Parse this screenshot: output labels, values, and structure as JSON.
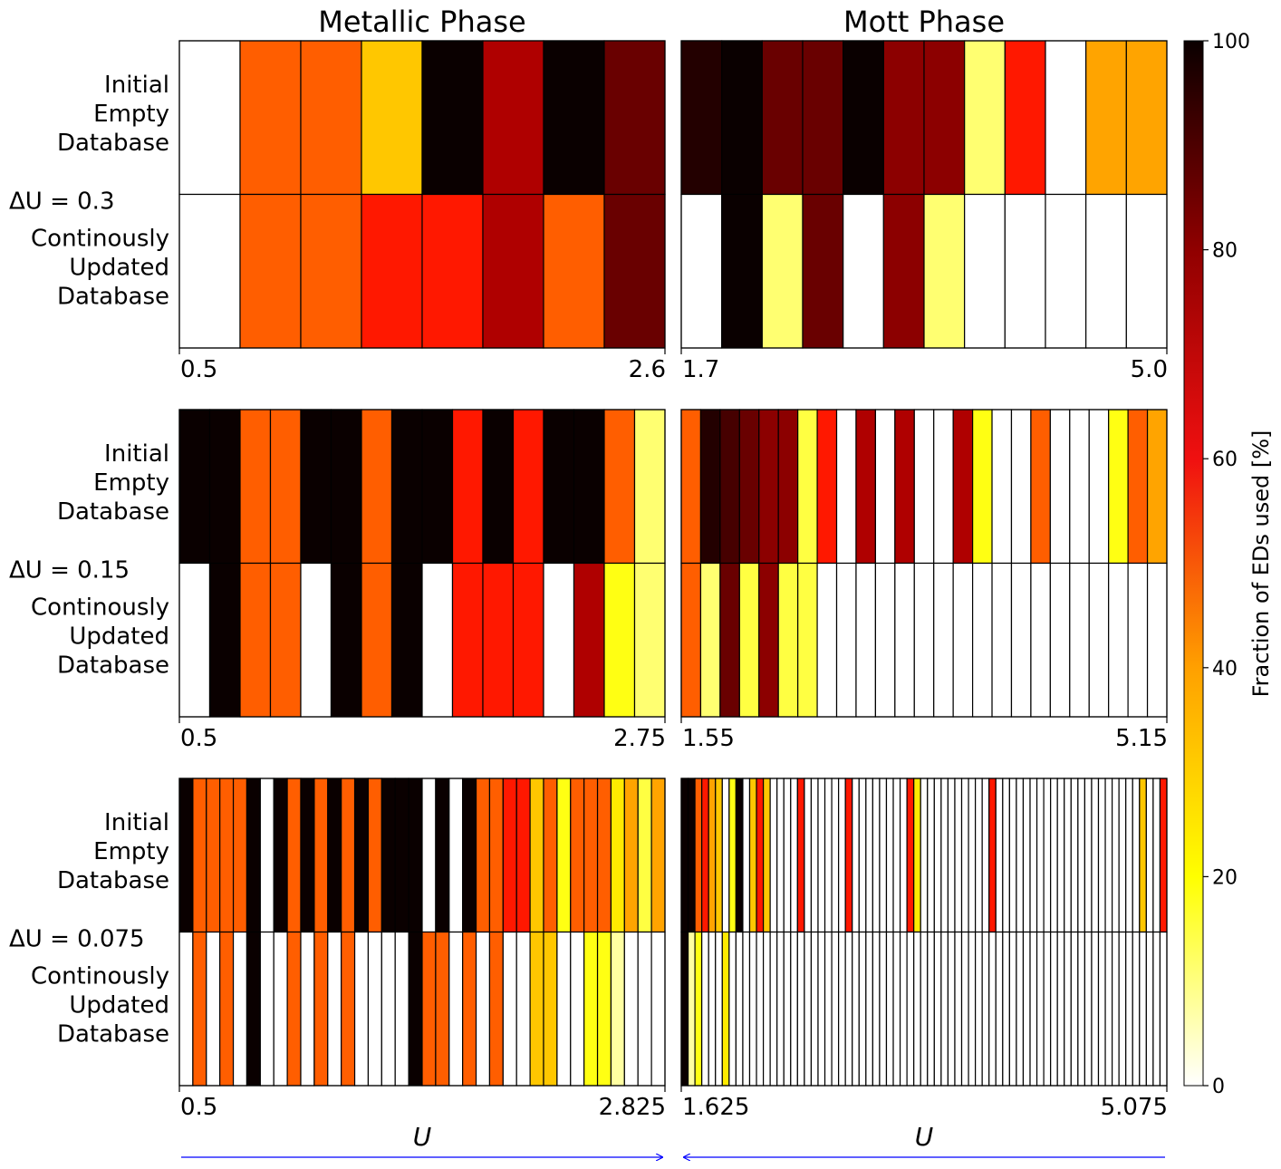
{
  "chart_data": {
    "type": "heatmap",
    "title_left": "Metallic Phase",
    "title_right": "Mott Phase",
    "row_labels": {
      "initial": [
        "Initial",
        "Empty",
        "Database"
      ],
      "continuous": [
        "Continously",
        "Updated",
        "Database"
      ]
    },
    "xlabel": "U",
    "colorbar": {
      "label": "Fraction of EDs used [%]",
      "range": [
        0,
        100
      ],
      "ticks": [
        "0",
        "20",
        "40",
        "60",
        "80",
        "100"
      ],
      "colormap": "hot_r"
    },
    "sweep_directions": {
      "metallic": "increasing U",
      "mott": "decreasing U"
    },
    "arrow_color": "#0000ff",
    "panels": [
      {
        "delta_label": "ΔU = 0.3",
        "metallic": {
          "start": "0.5",
          "end": "2.6",
          "initial": [
            0,
            50,
            50,
            35,
            100,
            75,
            100,
            85
          ],
          "continuous": [
            0,
            50,
            50,
            60,
            60,
            75,
            50,
            85
          ]
        },
        "mott": {
          "start": "1.7",
          "end": "5.0",
          "initial": [
            95,
            100,
            85,
            85,
            100,
            80,
            80,
            15,
            60,
            0,
            40,
            40
          ],
          "continuous": [
            0,
            100,
            15,
            85,
            0,
            80,
            15,
            0,
            0,
            0,
            0,
            0
          ]
        }
      },
      {
        "delta_label": "ΔU = 0.15",
        "metallic": {
          "start": "0.5",
          "end": "2.75",
          "initial": [
            100,
            100,
            50,
            50,
            100,
            100,
            50,
            100,
            100,
            60,
            100,
            60,
            100,
            100,
            50,
            15
          ],
          "continuous": [
            0,
            100,
            50,
            50,
            0,
            100,
            50,
            100,
            0,
            60,
            60,
            60,
            0,
            75,
            25,
            15
          ]
        },
        "mott": {
          "start": "1.55",
          "end": "5.15",
          "initial": [
            50,
            95,
            90,
            85,
            80,
            80,
            20,
            60,
            0,
            75,
            0,
            75,
            0,
            0,
            75,
            25,
            0,
            0,
            50,
            0,
            0,
            0,
            25,
            50,
            40
          ],
          "continuous": [
            50,
            15,
            85,
            20,
            80,
            20,
            20,
            0,
            0,
            0,
            0,
            0,
            0,
            0,
            0,
            0,
            0,
            0,
            0,
            0,
            0,
            0,
            0,
            0,
            0
          ]
        }
      },
      {
        "delta_label": "ΔU = 0.075",
        "metallic": {
          "start": "0.5",
          "end": "2.825",
          "initial": [
            100,
            50,
            50,
            50,
            50,
            100,
            0,
            100,
            50,
            100,
            50,
            100,
            50,
            100,
            50,
            100,
            100,
            100,
            0,
            100,
            0,
            100,
            50,
            50,
            60,
            60,
            35,
            50,
            25,
            50,
            50,
            50,
            30,
            40,
            20,
            40
          ],
          "continuous": [
            0,
            50,
            0,
            50,
            0,
            100,
            0,
            0,
            50,
            0,
            50,
            0,
            50,
            0,
            0,
            0,
            0,
            100,
            50,
            50,
            0,
            50,
            0,
            50,
            0,
            0,
            35,
            35,
            0,
            0,
            25,
            25,
            10,
            0,
            0,
            0
          ]
        },
        "mott": {
          "start": "1.625",
          "end": "5.075",
          "initial": [
            100,
            100,
            50,
            60,
            40,
            35,
            0,
            25,
            100,
            0,
            35,
            60,
            35,
            0,
            0,
            0,
            0,
            60,
            0,
            0,
            0,
            0,
            0,
            0,
            60,
            0,
            0,
            0,
            0,
            0,
            0,
            0,
            0,
            60,
            30,
            0,
            0,
            0,
            0,
            0,
            0,
            0,
            0,
            0,
            0,
            60,
            0,
            0,
            0,
            0,
            0,
            0,
            0,
            0,
            0,
            0,
            0,
            0,
            0,
            0,
            0,
            0,
            0,
            0,
            0,
            0,
            0,
            35,
            0,
            0,
            60
          ],
          "continuous": [
            100,
            10,
            25,
            0,
            0,
            0,
            30,
            0,
            0,
            0,
            0,
            0,
            0,
            0,
            0,
            0,
            0,
            0,
            0,
            0,
            0,
            0,
            0,
            0,
            0,
            0,
            0,
            0,
            0,
            0,
            0,
            0,
            0,
            0,
            0,
            0,
            0,
            0,
            0,
            0,
            0,
            0,
            0,
            0,
            0,
            0,
            0,
            0,
            0,
            0,
            0,
            0,
            0,
            0,
            0,
            0,
            0,
            0,
            0,
            0,
            0,
            0,
            0,
            0,
            0,
            0,
            0,
            0,
            0,
            0,
            0
          ]
        }
      }
    ]
  }
}
